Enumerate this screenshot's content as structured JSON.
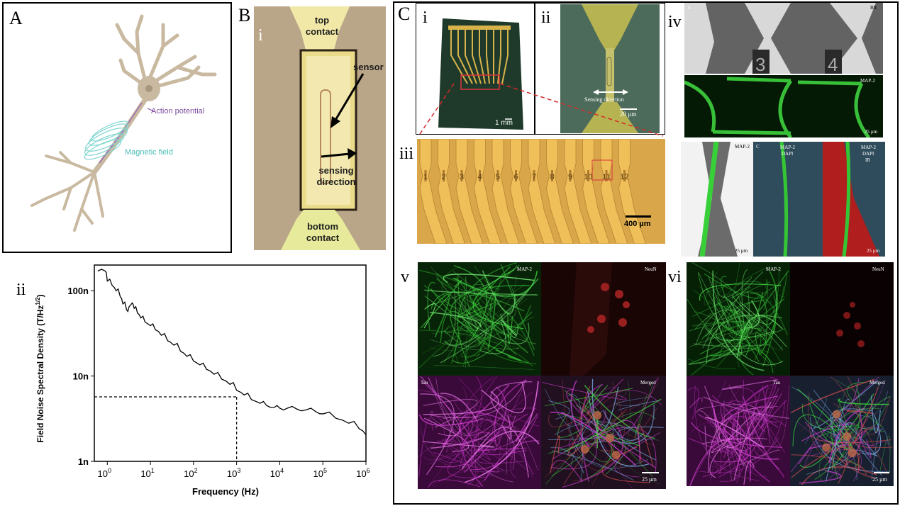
{
  "panel_a": {
    "letter": "A",
    "action_potential": "Action potential",
    "magnetic_field": "Magnetic field"
  },
  "panel_b": {
    "letter": "B",
    "sub": "i",
    "top_contact_1": "top",
    "top_contact_2": "contact",
    "sensor": "sensor",
    "sensing_1": "sensing",
    "sensing_2": "direction",
    "bottom_contact_1": "bottom",
    "bottom_contact_2": "contact"
  },
  "panel_b_ii": {
    "sub": "ii"
  },
  "panel_c": {
    "letter": "C",
    "i": {
      "sub": "i",
      "scale": "1 mm"
    },
    "ii": {
      "sub": "ii",
      "sensing": "Sensing direction",
      "scale": "20 µm"
    },
    "iii": {
      "sub": "iii",
      "numbers": [
        "1",
        "2",
        "3",
        "4",
        "5",
        "6",
        "7",
        "8",
        "9",
        "10",
        "11",
        "12"
      ],
      "scale": "400 µm"
    },
    "iv": {
      "sub": "iv",
      "a": "A",
      "br": "BR",
      "nums": [
        "3",
        "4"
      ],
      "map2": "MAP-2",
      "scale_top": "25 µm",
      "map2_b": "MAP-2",
      "c": "C",
      "map2_dapi_1": "MAP-2",
      "map2_dapi_2": "DAPI",
      "mdi_1": "MAP-2",
      "mdi_2": "DAPI",
      "mdi_3": "IR",
      "scale_l": "25 µm",
      "scale_r": "25 µm"
    },
    "v": {
      "sub": "v",
      "map2": "MAP-2",
      "neun": "NeuN",
      "tau": "Tau",
      "merged": "Merged",
      "scale": "25 µm"
    },
    "vi": {
      "sub": "vi",
      "map2": "MAP-2",
      "neun": "NeuN",
      "tau": "Tau",
      "merged": "Merged",
      "scale": "25 µm"
    }
  },
  "chart_data": {
    "type": "line",
    "xlabel": "Frequency (Hz)",
    "ylabel": "Field Noise Spectral Density (T/Hz",
    "ylabel_sup": "1/2",
    "ylabel_close": ")",
    "x_scale": "log",
    "y_scale": "log",
    "xlim": [
      0.5,
      1000000
    ],
    "ylim": [
      1e-09,
      2e-07
    ],
    "x_ticks": [
      1,
      10,
      100,
      1000,
      10000,
      100000,
      1000000
    ],
    "x_tick_labels": [
      {
        "base": "10",
        "exp": "0"
      },
      {
        "base": "10",
        "exp": "1"
      },
      {
        "base": "10",
        "exp": "2"
      },
      {
        "base": "10",
        "exp": "3"
      },
      {
        "base": "10",
        "exp": "4"
      },
      {
        "base": "10",
        "exp": "5"
      },
      {
        "base": "10",
        "exp": "6"
      }
    ],
    "y_ticks": [
      1e-09,
      1e-08,
      1e-07
    ],
    "y_tick_labels": [
      "1n",
      "10n",
      "100n"
    ],
    "series": [
      {
        "x": [
          0.6,
          0.9,
          1.0,
          1.3,
          1.6,
          2.0,
          2.3,
          2.8,
          3.2,
          3.8,
          4.2,
          5.0,
          6.0,
          7.5,
          10,
          13,
          18,
          25,
          35,
          50,
          70,
          100,
          140,
          200,
          300,
          450,
          700,
          1000,
          1500,
          2200,
          3500,
          5000,
          7500,
          10000,
          15000,
          25000,
          40000,
          70000,
          100000,
          200000,
          400000,
          700000,
          1000000
        ],
        "y": [
          1.7e-07,
          1.7e-07,
          1.3e-07,
          1.15e-07,
          1e-07,
          8.5e-08,
          7e-08,
          6e-08,
          6.5e-08,
          7.2e-08,
          6.2e-08,
          5.5e-08,
          4.8e-08,
          4.3e-08,
          3.9e-08,
          3.5e-08,
          3e-08,
          2.6e-08,
          2.3e-08,
          1.95e-08,
          1.7e-08,
          1.5e-08,
          1.35e-08,
          1.2e-08,
          1.05e-08,
          9.2e-09,
          8e-09,
          6.8e-09,
          6e-09,
          5.3e-09,
          4.8e-09,
          4.5e-09,
          4.3e-09,
          4.2e-09,
          4.2e-09,
          4.1e-09,
          4e-09,
          3.8e-09,
          3.6e-09,
          3.2e-09,
          2.8e-09,
          2.4e-09,
          2.05e-09
        ]
      }
    ],
    "reference_line": {
      "x": 1000,
      "y": 5.7e-09
    }
  }
}
